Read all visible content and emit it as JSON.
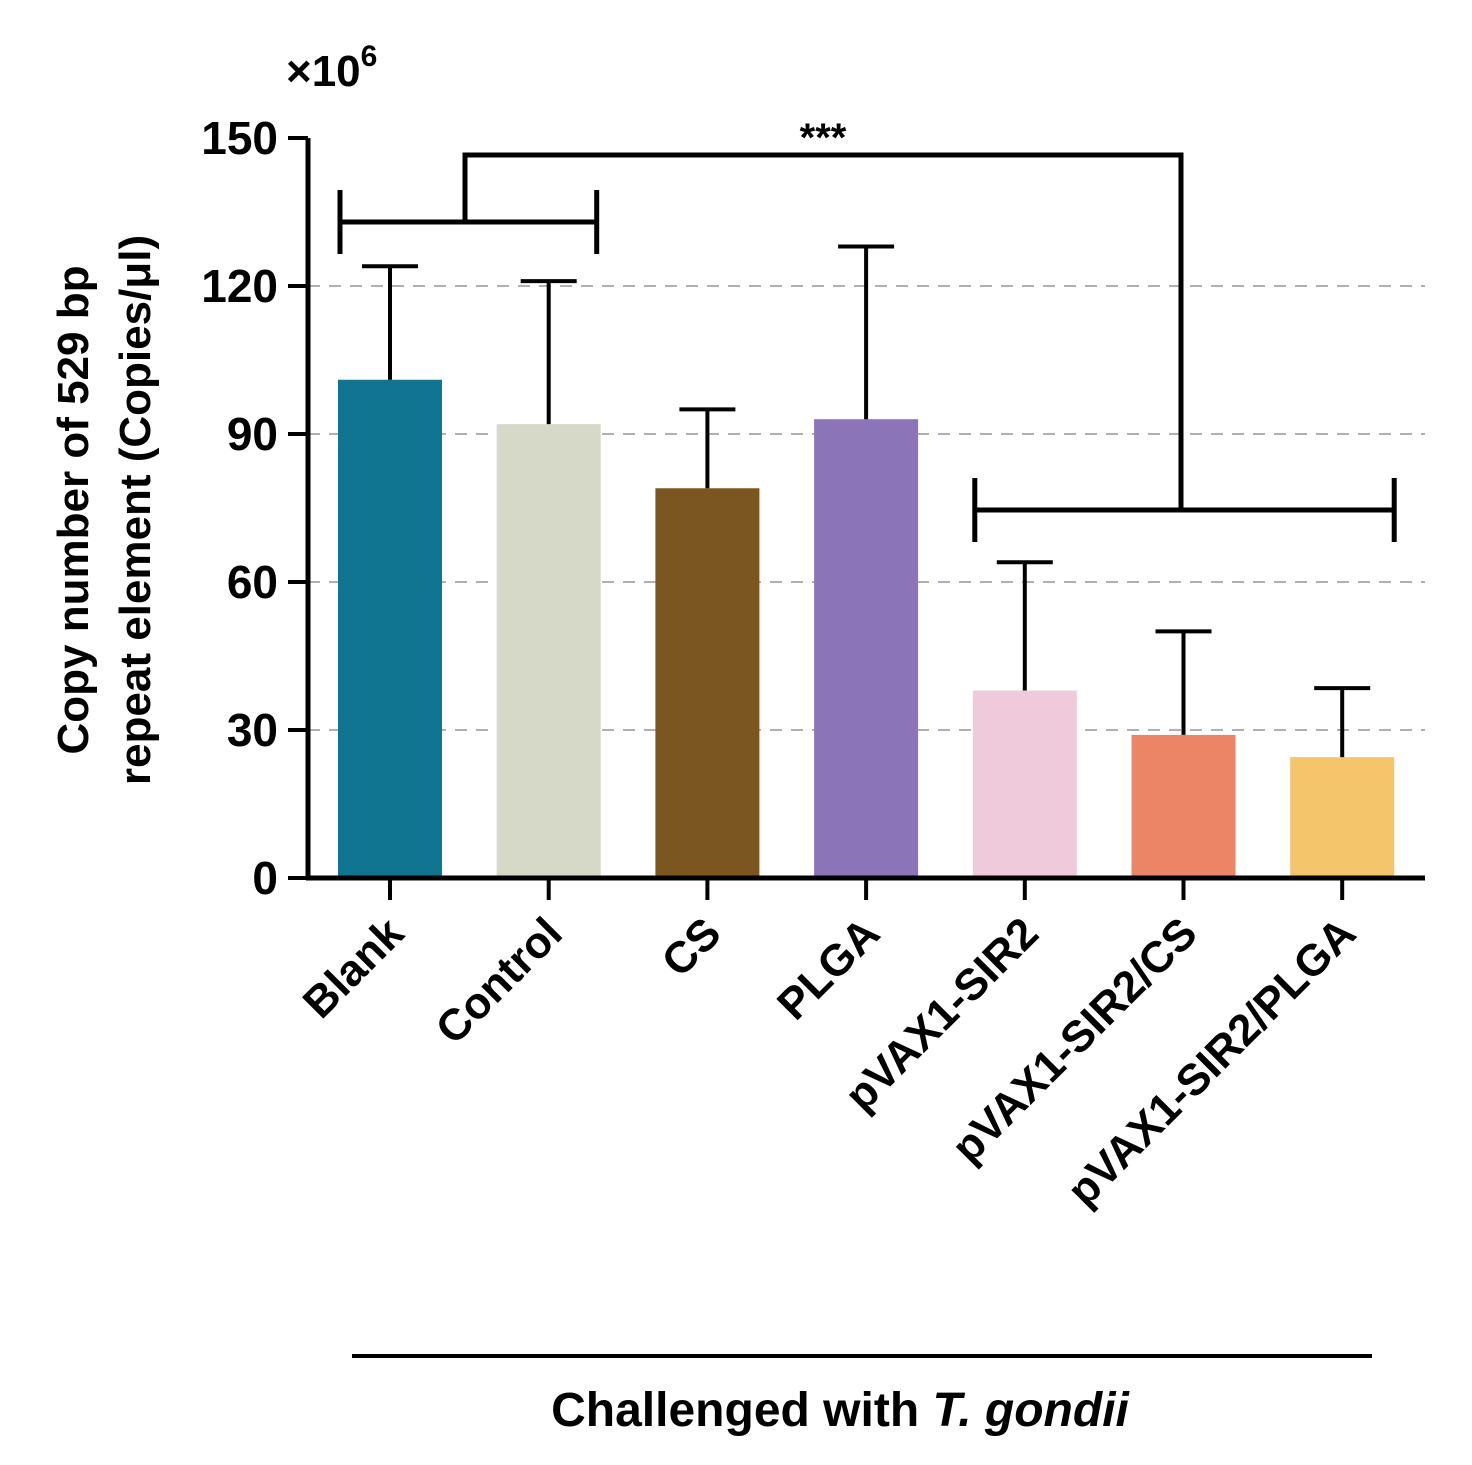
{
  "chart_data": {
    "type": "bar",
    "title": "",
    "ylabel_lines": [
      "Copy number of 529 bp",
      "repeat element (Copies/μl)"
    ],
    "y_multiplier": {
      "base": "×10",
      "exponent": "6"
    },
    "xcaption": {
      "prefix": "Challenged with ",
      "species": "T. gondii"
    },
    "ylim": [
      0,
      150
    ],
    "yticks": [
      "0",
      "30",
      "60",
      "90",
      "120",
      "150"
    ],
    "grid": "dashed horizontal at 30, 60, 90, 120",
    "categories": [
      "Blank",
      "Control",
      "CS",
      "PLGA",
      "pVAX1-SIR2",
      "pVAX1-SIR2/CS",
      "pVAX1-SIR2/PLGA"
    ],
    "values": [
      101,
      92,
      79,
      93,
      38,
      29,
      24.5
    ],
    "errors": [
      23,
      29,
      16,
      35,
      26,
      21,
      14
    ],
    "colors": [
      "#0f7590",
      "#d6d8c8",
      "#7b5620",
      "#8b74b8",
      "#efcadb",
      "#ec8466",
      "#f4c56a"
    ],
    "significance": {
      "label": "***",
      "left_group": [
        "Blank",
        "Control"
      ],
      "right_group": [
        "pVAX1-SIR2",
        "pVAX1-SIR2/CS",
        "pVAX1-SIR2/PLGA"
      ]
    }
  }
}
